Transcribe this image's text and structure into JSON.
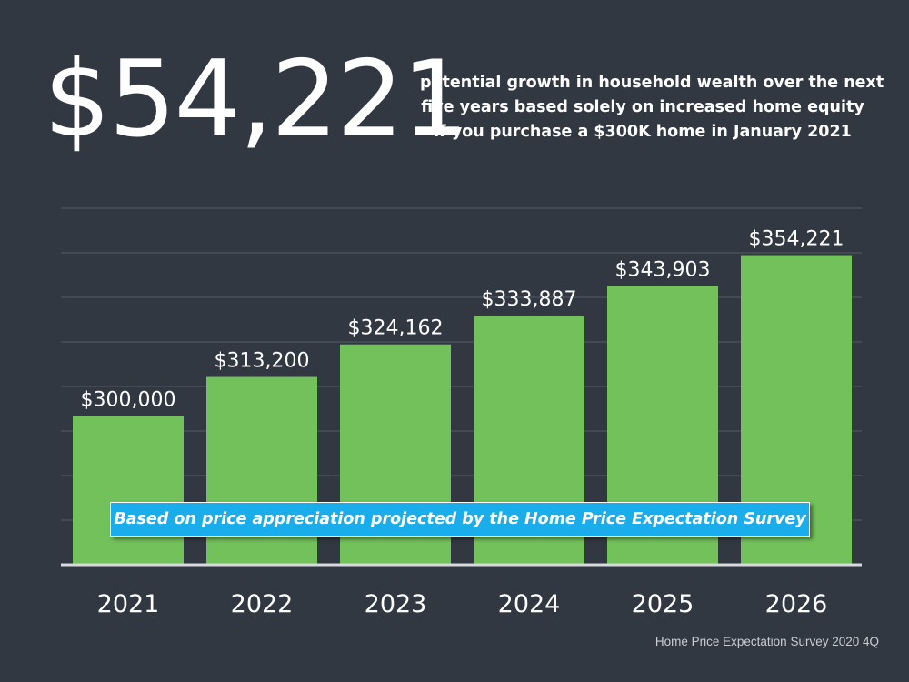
{
  "headline": {
    "amount": "$54,221",
    "description_lines": [
      "potential growth in household wealth over the next",
      "five years based solely on increased home equity",
      "if you purchase a $300K home in January 2021"
    ]
  },
  "callout": "Based on price appreciation projected by the Home Price Expectation Survey",
  "source": "Home Price Expectation Survey 2020 4Q",
  "chart_data": {
    "type": "bar",
    "categories": [
      "2021",
      "2022",
      "2023",
      "2024",
      "2025",
      "2026"
    ],
    "values": [
      300000,
      313200,
      324162,
      333887,
      343903,
      354221
    ],
    "data_labels": [
      "$300,000",
      "$313,200",
      "$324,162",
      "$333,887",
      "$343,903",
      "$354,221"
    ],
    "title": "",
    "xlabel": "",
    "ylabel": "",
    "ylim": [
      250000,
      370000
    ],
    "grid": true,
    "legend": "none"
  },
  "colors": {
    "background": "#323842",
    "bar": "#72c15a",
    "callout": "#19aeeb",
    "gridline": "#555c66",
    "axis": "#d7d9dc"
  }
}
